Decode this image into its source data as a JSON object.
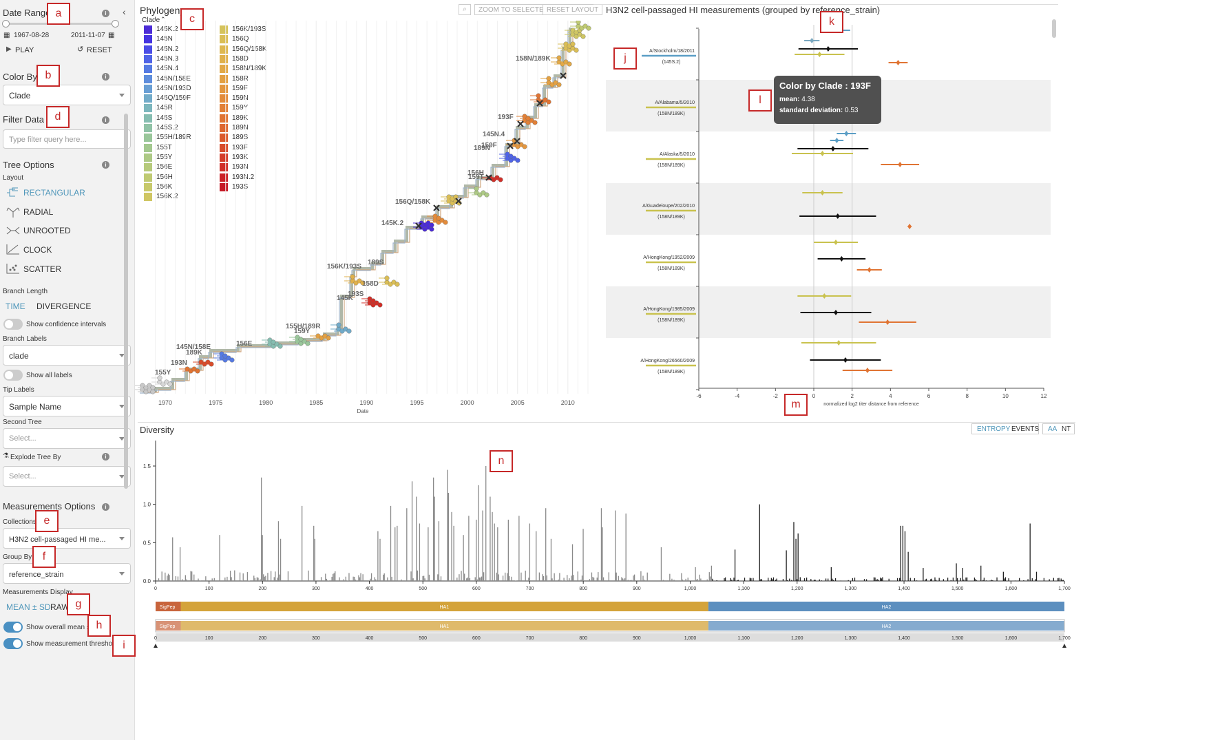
{
  "sidebar": {
    "date_range": {
      "title": "Date Range",
      "start": "1967-08-28",
      "end": "2011-11-07",
      "play": "PLAY",
      "reset": "RESET"
    },
    "color_by": {
      "title": "Color By",
      "value": "Clade"
    },
    "filter": {
      "title": "Filter Data",
      "placeholder": "Type filter query here..."
    },
    "tree_options": {
      "title": "Tree Options",
      "layout_label": "Layout",
      "layouts": [
        "RECTANGULAR",
        "RADIAL",
        "UNROOTED",
        "CLOCK",
        "SCATTER"
      ],
      "branch_length_label": "Branch Length",
      "branch_length_time": "TIME",
      "branch_length_div": "DIVERGENCE",
      "confidence_label": "Show confidence intervals",
      "branch_labels_label": "Branch Labels",
      "branch_labels_value": "clade",
      "show_all_labels": "Show all labels",
      "tip_labels_label": "Tip Labels",
      "tip_labels_value": "Sample Name",
      "second_tree_label": "Second Tree",
      "second_tree_placeholder": "Select...",
      "explode_label": "Explode Tree By",
      "explode_placeholder": "Select..."
    },
    "measurements": {
      "title": "Measurements Options",
      "collections_label": "Collections",
      "collections_value": "H3N2 cell-passaged HI me...",
      "group_by_label": "Group By",
      "group_by_value": "reference_strain",
      "display_label": "Measurements Display",
      "display_mean": "MEAN ± SD",
      "display_raw": "RAW",
      "show_overall": "Show overall mean ± SD",
      "show_threshold": "Show measurement threshold(s)"
    }
  },
  "phylogeny": {
    "title": "Phylogeny",
    "legend_title": "Clade",
    "buttons": [
      "ZOOM TO SELECTED",
      "RESET LAYOUT"
    ],
    "legend_col1": [
      {
        "label": "145K.2",
        "color": "#4b2bd6"
      },
      {
        "label": "145N",
        "color": "#4433e0"
      },
      {
        "label": "145N.2",
        "color": "#4a4ce6"
      },
      {
        "label": "145N.3",
        "color": "#4f63e6"
      },
      {
        "label": "145N.4",
        "color": "#557ae2"
      },
      {
        "label": "145N/158E",
        "color": "#5e8ddc"
      },
      {
        "label": "145N/193D",
        "color": "#689ed4"
      },
      {
        "label": "145Q/159F",
        "color": "#72abc9"
      },
      {
        "label": "145R",
        "color": "#7cb6bd"
      },
      {
        "label": "145S",
        "color": "#86bdb1"
      },
      {
        "label": "145S.2",
        "color": "#90c2a6"
      },
      {
        "label": "155H/189R",
        "color": "#99c69a"
      },
      {
        "label": "155T",
        "color": "#a3c88f"
      },
      {
        "label": "155Y",
        "color": "#adc985"
      },
      {
        "label": "156E",
        "color": "#b6ca7b"
      },
      {
        "label": "156H",
        "color": "#bfca72"
      },
      {
        "label": "156K",
        "color": "#c7c96a"
      },
      {
        "label": "156K.2",
        "color": "#cfc663"
      }
    ],
    "legend_col2": [
      {
        "label": "156K/193S",
        "color": "#d5c35c"
      },
      {
        "label": "156Q",
        "color": "#dabe56"
      },
      {
        "label": "156Q/158K",
        "color": "#deb851"
      },
      {
        "label": "158D",
        "color": "#e0b14c"
      },
      {
        "label": "158N/189K",
        "color": "#e2a947"
      },
      {
        "label": "158R",
        "color": "#e3a042"
      },
      {
        "label": "159F",
        "color": "#e3963e"
      },
      {
        "label": "159N",
        "color": "#e38b3a"
      },
      {
        "label": "159Y",
        "color": "#e28036"
      },
      {
        "label": "189K",
        "color": "#e07433"
      },
      {
        "label": "189N",
        "color": "#de6730"
      },
      {
        "label": "189S",
        "color": "#db5a2d"
      },
      {
        "label": "193F",
        "color": "#d84c2b"
      },
      {
        "label": "193K",
        "color": "#d43d29"
      },
      {
        "label": "193N",
        "color": "#d02f28"
      },
      {
        "label": "193N.2",
        "color": "#cb2227"
      },
      {
        "label": "193S",
        "color": "#c51a26"
      }
    ],
    "x_ticks": [
      "1970",
      "1975",
      "1980",
      "1985",
      "1990",
      "1995",
      "2000",
      "2005",
      "2010"
    ],
    "x_label": "Date",
    "branch_labels": [
      "158N/189K",
      "193F",
      "145N.4",
      "189N",
      "159F",
      "156H",
      "159T",
      "156Q/158K",
      "145K.2",
      "156K/193S",
      "189S",
      "158D",
      "145K",
      "193S",
      "155H/189R",
      "159Y",
      "156E",
      "145N/158E",
      "189K",
      "193N",
      "155Y"
    ]
  },
  "measurements_panel": {
    "title": "H3N2 cell-passaged HI measurements (grouped by reference_strain)",
    "x_label": "normalized log2 titer distance from reference",
    "x_ticks": [
      "-6",
      "-4",
      "-2",
      "0",
      "2",
      "4",
      "6",
      "8",
      "10",
      "12"
    ],
    "groups": [
      {
        "strain": "A/Stockholm/18/2011",
        "clade": "(145S.2)"
      },
      {
        "strain": "A/Alabama/5/2010",
        "clade": "(158N/189K)"
      },
      {
        "strain": "A/Alaska/5/2010",
        "clade": "(158N/189K)"
      },
      {
        "strain": "A/Guadeloupe/202/2010",
        "clade": "(158N/189K)"
      },
      {
        "strain": "A/HongKong/1952/2009",
        "clade": "(158N/189K)"
      },
      {
        "strain": "A/HongKong/1985/2009",
        "clade": "(158N/189K)"
      },
      {
        "strain": "A/HongKong/26560/2009",
        "clade": "(158N/189K)"
      }
    ],
    "tooltip": {
      "title": "Color by Clade : 193F",
      "mean_label": "mean:",
      "mean_value": "4.38",
      "sd_label": "standard deviation:",
      "sd_value": "0.53"
    }
  },
  "diversity": {
    "title": "Diversity",
    "buttons": [
      "ENTROPY",
      "EVENTS",
      "AA",
      "NT"
    ],
    "y_ticks": [
      "1.5",
      "1.0",
      "0.5",
      "0.0"
    ],
    "x_ticks": [
      "0",
      "100",
      "200",
      "300",
      "400",
      "500",
      "600",
      "700",
      "800",
      "900",
      "1,000",
      "1,100",
      "1,200",
      "1,300",
      "1,400",
      "1,500",
      "1,600",
      "1,700"
    ],
    "genes": [
      "SigPep",
      "HA1",
      "HA2"
    ]
  },
  "annotations": [
    "a",
    "b",
    "c",
    "d",
    "e",
    "f",
    "g",
    "h",
    "i",
    "j",
    "k",
    "l",
    "m",
    "n"
  ]
}
